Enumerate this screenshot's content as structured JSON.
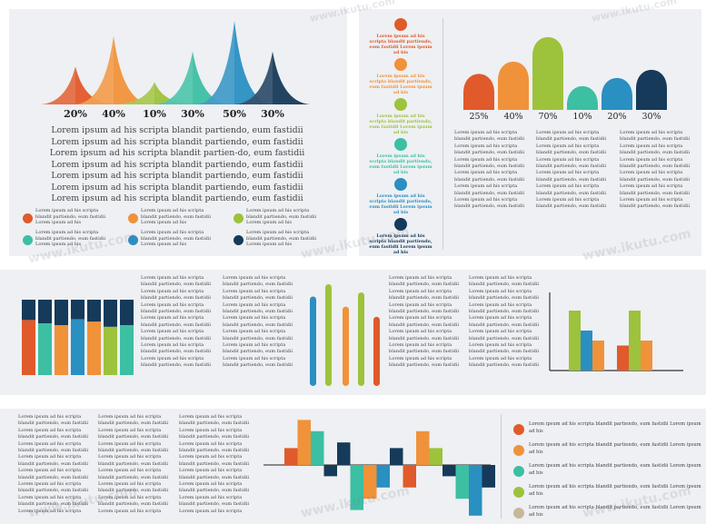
{
  "chart_data": [
    {
      "type": "area",
      "percent_labels": [
        "20%",
        "40%",
        "10%",
        "30%",
        "50%",
        "30%"
      ],
      "values": [
        20,
        40,
        10,
        30,
        50,
        30
      ],
      "colors": [
        "#e05a2b",
        "#f0923a",
        "#9dc23c",
        "#3cbfa3",
        "#2a8fc1",
        "#163a5a"
      ]
    },
    {
      "type": "bar",
      "percent_labels": [
        "25%",
        "40%",
        "70%",
        "10%",
        "20%",
        "30%"
      ],
      "values": [
        25,
        40,
        70,
        10,
        20,
        30
      ],
      "colors": [
        "#e05a2b",
        "#f0923a",
        "#9dc23c",
        "#3cbfa3",
        "#2a8fc1",
        "#163a5a"
      ]
    },
    {
      "type": "bar",
      "stacked": true,
      "series": [
        {
          "values": [
            40,
            30,
            25,
            42,
            35,
            20,
            25
          ]
        },
        {
          "values": [
            60,
            70,
            75,
            58,
            65,
            80,
            75
          ]
        }
      ],
      "colors": [
        "#e05a2b",
        "#3cbfa3",
        "#f0923a",
        "#2a8fc1",
        "#9dc23c",
        "#163a5a"
      ]
    },
    {
      "type": "bar",
      "series": [
        {
          "values": [
            88,
            100,
            78,
            92,
            68
          ]
        }
      ],
      "colors": [
        "#2a8fc1",
        "#9dc23c",
        "#f0923a",
        "#9dc23c",
        "#e05a2b"
      ]
    },
    {
      "type": "bar",
      "series": [
        {
          "values": [
            60,
            40,
            30,
            25,
            60,
            30
          ]
        }
      ],
      "colors": [
        "#9dc23c",
        "#2a8fc1",
        "#f0923a",
        "#e05a2b",
        "#9dc23c",
        "#f0923a"
      ]
    },
    {
      "type": "bar",
      "diverging": true,
      "values": [
        3,
        8,
        6,
        -2,
        4,
        -8,
        -6,
        -4,
        3,
        -4,
        6,
        3,
        -2,
        -6,
        -9,
        -4
      ],
      "colors": [
        "#e05a2b",
        "#f0923a",
        "#3cbfa3",
        "#163a5a",
        "#163a5a",
        "#3cbfa3",
        "#f0923a",
        "#2a8fc1",
        "#163a5a",
        "#e05a2b",
        "#f0923a",
        "#9dc23c",
        "#163a5a",
        "#3cbfa3",
        "#2a8fc1",
        "#163a5a"
      ]
    }
  ],
  "top_left": {
    "paragraph": "Lorem ipsum ad his scripta blandit partiendo, eum fastidii Lorem ipsum ad his scripta blandit partiendo, eum fastidii Lorem ipsum ad his scripta blandit partien-do, eum fastidii Lorem ipsum ad his scripta blandit partiendo, eum fastidii Lorem ipsum ad his scripta blandit partiendo, eum fastidii Lorem ipsum ad his scripta blandit partiendo, eum fastidii Lorem ipsum ad his scripta blandit partiendo, eum fastidii",
    "legend": [
      {
        "text": "Lorem ipsum ad his scripta blandit partiendo, eum fastidii Lorem ipsum ad his",
        "color": "#e05a2b"
      },
      {
        "text": "Lorem ipsum ad his scripta blandit partiendo, eum fastidii Lorem ipsum ad his",
        "color": "#f0923a"
      },
      {
        "text": "Lorem ipsum ad his scripta blandit partiendo, eum fastidii Lorem ipsum ad his",
        "color": "#9dc23c"
      },
      {
        "text": "Lorem ipsum ad his scripta blandit partiendo, eum fastidii Lorem ipsum ad his",
        "color": "#3cbfa3"
      },
      {
        "text": "Lorem ipsum ad his scripta blandit partiendo, eum fastidii Lorem ipsum ad his",
        "color": "#2a8fc1"
      },
      {
        "text": "Lorem ipsum ad his scripta blandit partiendo, eum fastidii Lorem ipsum ad his",
        "color": "#163a5a"
      }
    ]
  },
  "top_right": {
    "timeline": [
      {
        "text": "Lorem ipsum ad his scripta blandit partiendo, eum fastidii Lorem ipsum ad his",
        "color": "#e05a2b"
      },
      {
        "text": "Lorem ipsum ad his scripta blandit partiendo, eum fastidii Lorem ipsum ad his",
        "color": "#f0923a"
      },
      {
        "text": "Lorem ipsum ad his scripta blandit partiendo, eum fastidii Lorem ipsum ad his",
        "color": "#9dc23c"
      },
      {
        "text": "Lorem ipsum ad his scripta blandit partiendo, eum fastidii Lorem ipsum ad his",
        "color": "#3cbfa3"
      },
      {
        "text": "Lorem ipsum ad his scripta blandit partiendo, eum fastidii Lorem ipsum ad his",
        "color": "#2a8fc1"
      },
      {
        "text": "Lorem ipsum ad his scripta blandit partiendo, eum fastidii Lorem ipsum ad his",
        "color": "#163a5a"
      }
    ],
    "text_columns": [
      "Lorem ipsum ad his scripta blandit partiendo, eum fastidii Lorem ipsum ad his scripta blandit partiendo, eum fastidii Lorem ipsum ad his scripta blandit partiendo, eum fastidii Lorem ipsum ad his scripta blandit partiendo, eum fastidii Lorem ipsum ad his scripta blandit partiendo, eum fastidii Lorem ipsum ad his scripta blandit partiendo, eum fastidii",
      "Lorem ipsum ad his scripta blandit partiendo, eum fastidii Lorem ipsum ad his scripta blandit partiendo, eum fastidii Lorem ipsum ad his scripta blandit partiendo, eum fastidii Lorem ipsum ad his scripta blandit partiendo, eum fastidii Lorem ipsum ad his scripta blandit partiendo, eum fastidii Lorem ipsum ad his scripta blandit partiendo, eum fastidii",
      "Lorem ipsum ad his scripta blandit partiendo, eum fastidii Lorem ipsum ad his scripta blandit partiendo, eum fastidii Lorem ipsum ad his scripta blandit partiendo, eum fastidii Lorem ipsum ad his scripta blandit partiendo, eum fastidii Lorem ipsum ad his scripta blandit partiendo, eum fastidii Lorem ipsum ad his scripta blandit partiendo, eum fastidii"
    ]
  },
  "middle": {
    "text_columns": [
      "Lorem ipsum ad his scripta blandit partiendo, eum fastidii Lorem ipsum ad his scripta blandit partiendo, eum fastidii Lorem ipsum ad his scripta blandit partiendo, eum fastidii Lorem ipsum ad his scripta blandit partiendo, eum fastidii Lorem ipsum ad his scripta blandit partiendo, eum fastidii Lorem ipsum ad his scripta blandit partiendo, eum fastidii Lorem ipsum ad his scripta blandit partiendo, eum fastidii",
      "Lorem ipsum ad his scripta blandit partiendo, eum fastidii Lorem ipsum ad his scripta blandit partiendo, eum fastidii Lorem ipsum ad his scripta blandit partiendo, eum fastidii Lorem ipsum ad his scripta blandit partiendo, eum fastidii Lorem ipsum ad his scripta blandit partiendo, eum fastidii Lorem ipsum ad his scripta blandit partiendo, eum fastidii Lorem ipsum ad his scripta blandit partiendo, eum fastidii",
      "Lorem ipsum ad his scripta blandit partiendo, eum fastidii Lorem ipsum ad his scripta blandit partiendo, eum fastidii Lorem ipsum ad his scripta blandit partiendo, eum fastidii Lorem ipsum ad his scripta blandit partiendo, eum fastidii Lorem ipsum ad his scripta blandit partiendo, eum fastidii Lorem ipsum ad his scripta blandit partiendo, eum fastidii Lorem ipsum ad his scripta blandit partiendo, eum fastidii",
      "Lorem ipsum ad his scripta blandit partiendo, eum fastidii Lorem ipsum ad his scripta blandit partiendo, eum fastidii Lorem ipsum ad his scripta blandit partiendo, eum fastidii Lorem ipsum ad his scripta blandit partiendo, eum fastidii Lorem ipsum ad his scripta blandit partiendo, eum fastidii Lorem ipsum ad his scripta blandit partiendo, eum fastidii Lorem ipsum ad his scripta blandit partiendo, eum fastidii"
    ]
  },
  "bottom": {
    "text_columns": [
      "Lorem ipsum ad his scripta blandit partiendo, eum fastidii Lorem ipsum ad his scripta blandit partiendo, eum fastidii Lorem ipsum ad his scripta blandit partiendo, eum fastidii Lorem ipsum ad his scripta blandit partiendo, eum fastidii Lorem ipsum ad his scripta blandit partiendo, eum fastidii Lorem ipsum ad his scripta blandit partiendo, eum fastidii Lorem ipsum ad his scripta blandit partiendo, eum fastidii Lorem ipsum ad his scripta",
      "Lorem ipsum ad his scripta blandit partiendo, eum fastidii Lorem ipsum ad his scripta blandit partiendo, eum fastidii Lorem ipsum ad his scripta blandit partiendo, eum fastidii Lorem ipsum ad his scripta blandit partiendo, eum fastidii Lorem ipsum ad his scripta blandit partiendo, eum fastidii Lorem ipsum ad his scripta blandit partiendo, eum fastidii Lorem ipsum ad his scripta blandit partiendo, eum fastidii Lorem ipsum ad his scripta",
      "Lorem ipsum ad his scripta blandit partiendo, eum fastidii Lorem ipsum ad his scripta blandit partiendo, eum fastidii Lorem ipsum ad his scripta blandit partiendo, eum fastidii Lorem ipsum ad his scripta blandit partiendo, eum fastidii Lorem ipsum ad his scripta blandit partiendo, eum fastidii Lorem ipsum ad his scripta blandit partiendo, eum fastidii Lorem ipsum ad his scripta blandit partiendo, eum fastidii Lorem ipsum ad his scripta"
    ],
    "legend": [
      {
        "text": "Lorem ipsum ad his scripta blandit partiendo, eum fastidii Lorem ipsum ad his",
        "color": "#e05a2b"
      },
      {
        "text": "Lorem ipsum ad his scripta blandit partiendo, eum fastidii Lorem ipsum ad his",
        "color": "#f0923a"
      },
      {
        "text": "Lorem ipsum ad his scripta blandit partiendo, eum fastidii Lorem ipsum ad his",
        "color": "#3cbfa3"
      },
      {
        "text": "Lorem ipsum ad his scripta blandit partiendo, eum fastidii Lorem ipsum ad his",
        "color": "#9dc23c"
      },
      {
        "text": "Lorem ipsum ad his scripta blandit partiendo, eum fastidii Lorem ipsum ad his",
        "color": "#c8b89a"
      }
    ]
  },
  "watermark": "www.ikutu.com"
}
